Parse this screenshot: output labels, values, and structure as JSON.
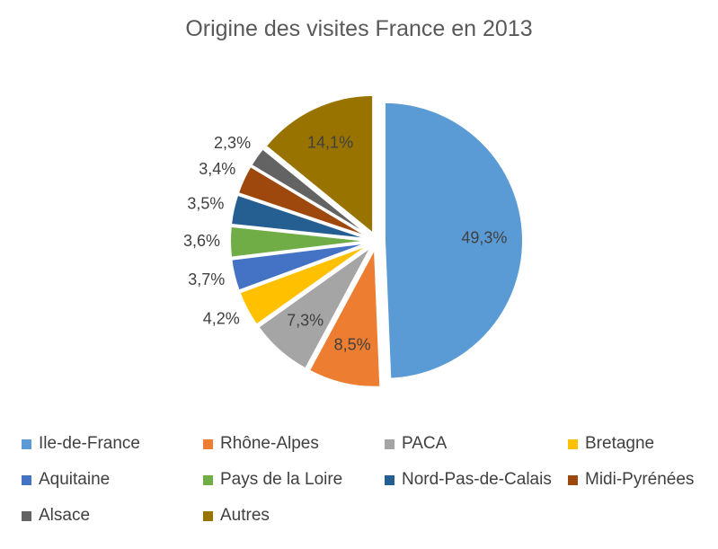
{
  "chart_data": {
    "type": "pie",
    "title": "Origine des visites France en 2013",
    "categories": [
      "Ile-de-France",
      "Rhône-Alpes",
      "PACA",
      "Bretagne",
      "Aquitaine",
      "Pays de la Loire",
      "Nord-Pas-de-Calais",
      "Midi-Pyrénées",
      "Alsace",
      "Autres"
    ],
    "values": [
      49.3,
      8.5,
      7.3,
      4.2,
      3.7,
      3.6,
      3.5,
      3.4,
      2.3,
      14.1
    ],
    "labels": [
      "49,3%",
      "8,5%",
      "7,3%",
      "4,2%",
      "3,7%",
      "3,6%",
      "3,5%",
      "3,4%",
      "2,3%",
      "14,1%"
    ],
    "colors": [
      "#5B9BD5",
      "#ED7D31",
      "#A5A5A5",
      "#FFC000",
      "#4472C4",
      "#70AD47",
      "#255E91",
      "#9E480E",
      "#636363",
      "#997300"
    ],
    "exploded": true,
    "legend_position": "bottom"
  }
}
